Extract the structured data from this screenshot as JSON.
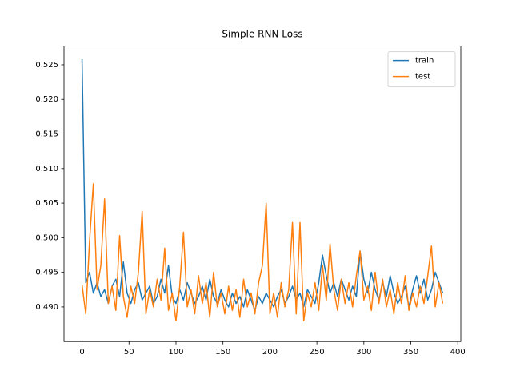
{
  "chart_data": {
    "type": "line",
    "title": "Simple RNN Loss",
    "x": [
      0,
      4,
      8,
      12,
      16,
      20,
      24,
      28,
      32,
      36,
      40,
      44,
      48,
      52,
      56,
      60,
      64,
      68,
      72,
      76,
      80,
      84,
      88,
      92,
      96,
      100,
      104,
      108,
      112,
      116,
      120,
      124,
      128,
      132,
      136,
      140,
      144,
      148,
      152,
      156,
      160,
      164,
      168,
      172,
      176,
      180,
      184,
      188,
      192,
      196,
      200,
      204,
      208,
      212,
      216,
      220,
      224,
      228,
      232,
      236,
      240,
      244,
      248,
      252,
      256,
      260,
      264,
      268,
      272,
      276,
      280,
      284,
      288,
      292,
      296,
      300,
      304,
      308,
      312,
      316,
      320,
      324,
      328,
      332,
      336,
      340,
      344,
      348,
      352,
      356,
      360,
      364,
      368,
      372,
      376,
      380,
      384
    ],
    "series": [
      {
        "name": "train",
        "color": "#1f77b4",
        "values": [
          0.5258,
          0.4935,
          0.495,
          0.492,
          0.4935,
          0.4915,
          0.4925,
          0.4905,
          0.493,
          0.494,
          0.4915,
          0.4965,
          0.492,
          0.4905,
          0.4925,
          0.4935,
          0.491,
          0.492,
          0.493,
          0.4905,
          0.4915,
          0.494,
          0.492,
          0.496,
          0.4915,
          0.4905,
          0.4925,
          0.491,
          0.4935,
          0.492,
          0.4905,
          0.4915,
          0.493,
          0.491,
          0.494,
          0.4915,
          0.4905,
          0.4925,
          0.491,
          0.49,
          0.492,
          0.4905,
          0.4915,
          0.49,
          0.4925,
          0.491,
          0.4895,
          0.4915,
          0.4905,
          0.492,
          0.491,
          0.49,
          0.4915,
          0.4925,
          0.4905,
          0.4915,
          0.493,
          0.491,
          0.492,
          0.49,
          0.4925,
          0.4915,
          0.4905,
          0.4935,
          0.4975,
          0.4945,
          0.492,
          0.4935,
          0.4915,
          0.494,
          0.4925,
          0.491,
          0.493,
          0.4915,
          0.498,
          0.494,
          0.492,
          0.495,
          0.4925,
          0.491,
          0.4935,
          0.4915,
          0.4945,
          0.492,
          0.4905,
          0.4915,
          0.493,
          0.49,
          0.4925,
          0.4945,
          0.492,
          0.494,
          0.491,
          0.4925,
          0.495,
          0.4935,
          0.492
        ]
      },
      {
        "name": "test",
        "color": "#ff7f0e",
        "values": [
          0.4932,
          0.489,
          0.4995,
          0.5078,
          0.4925,
          0.496,
          0.5056,
          0.4905,
          0.493,
          0.4895,
          0.5003,
          0.4915,
          0.4885,
          0.493,
          0.4905,
          0.495,
          0.5038,
          0.489,
          0.4925,
          0.49,
          0.494,
          0.491,
          0.4985,
          0.4895,
          0.492,
          0.488,
          0.493,
          0.5008,
          0.49,
          0.4925,
          0.489,
          0.4945,
          0.4905,
          0.4935,
          0.4885,
          0.495,
          0.49,
          0.492,
          0.489,
          0.493,
          0.4895,
          0.4925,
          0.4885,
          0.494,
          0.49,
          0.492,
          0.489,
          0.4935,
          0.496,
          0.505,
          0.489,
          0.492,
          0.4885,
          0.4935,
          0.49,
          0.4925,
          0.5022,
          0.489,
          0.5022,
          0.488,
          0.492,
          0.49,
          0.4935,
          0.4895,
          0.496,
          0.491,
          0.4991,
          0.4925,
          0.4895,
          0.494,
          0.4905,
          0.4935,
          0.49,
          0.4945,
          0.4981,
          0.491,
          0.493,
          0.4895,
          0.495,
          0.4905,
          0.494,
          0.49,
          0.4925,
          0.489,
          0.4935,
          0.4905,
          0.4945,
          0.4895,
          0.492,
          0.49,
          0.493,
          0.4905,
          0.4945,
          0.4988,
          0.49,
          0.4935,
          0.4905
        ]
      }
    ],
    "xlim": [
      -19.2,
      403.2
    ],
    "xticks": [
      0,
      50,
      100,
      150,
      200,
      250,
      300,
      350,
      400
    ],
    "ylim": [
      0.485,
      0.5277
    ],
    "yticks": [
      {
        "value": 0.49,
        "label": "0.490"
      },
      0.495,
      {
        "value": 0.5,
        "label": "0.500"
      },
      0.505,
      {
        "value": 0.51,
        "label": "0.510"
      },
      0.515,
      {
        "value": 0.52,
        "label": "0.520"
      },
      0.525
    ],
    "legend": "upper right"
  }
}
